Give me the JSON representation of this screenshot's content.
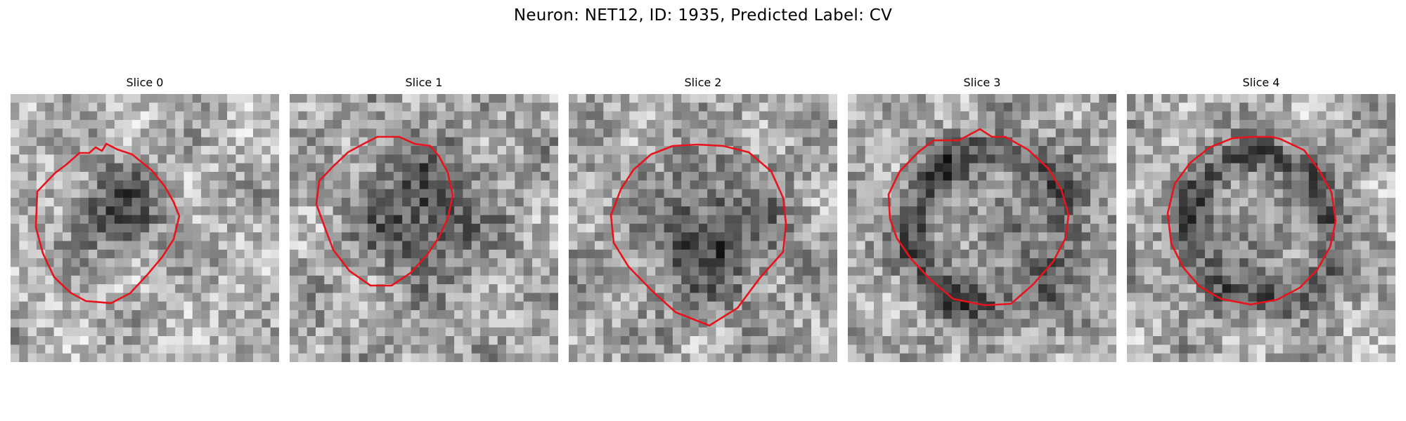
{
  "figure": {
    "title": "Neuron: NET12, ID: 1935, Predicted Label: CV"
  },
  "panels": [
    {
      "title": "Slice 0"
    },
    {
      "title": "Slice 1"
    },
    {
      "title": "Slice 2"
    },
    {
      "title": "Slice 3"
    },
    {
      "title": "Slice 4"
    }
  ],
  "colors": {
    "contour": "#e8131c",
    "colormap": "gray"
  }
}
